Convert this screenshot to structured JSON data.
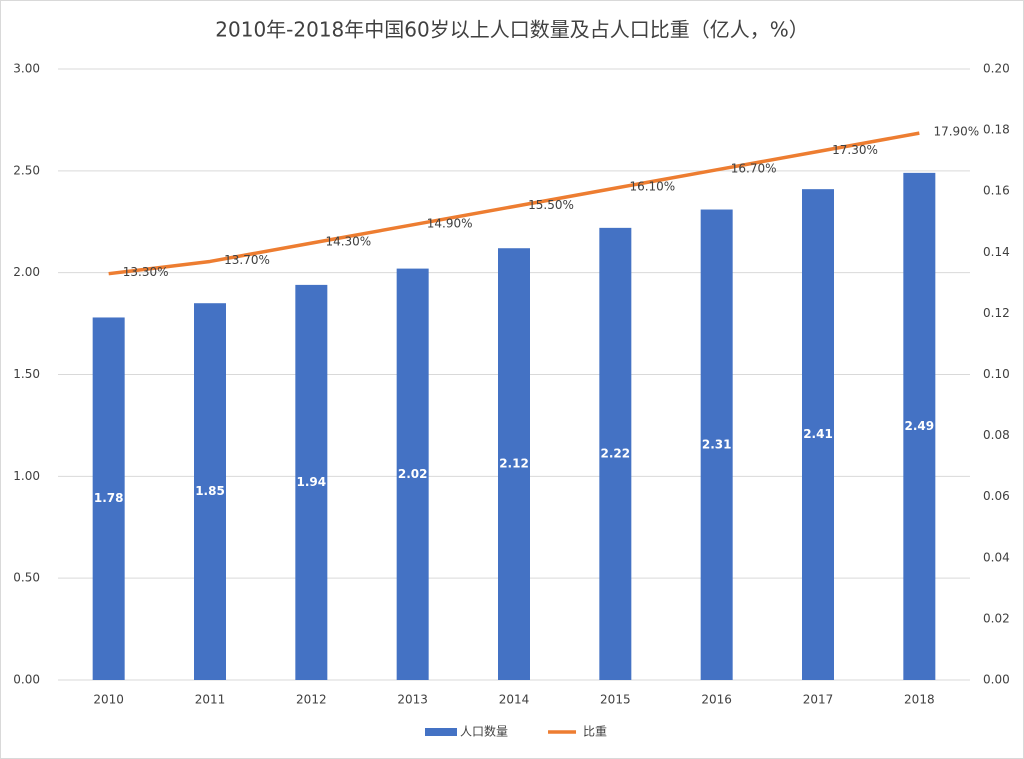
{
  "chart_data": {
    "type": "bar",
    "title": "2010年-2018年中国60岁以上人口数量及占人口比重（亿人，%）",
    "categories": [
      "2010",
      "2011",
      "2012",
      "2013",
      "2014",
      "2015",
      "2016",
      "2017",
      "2018"
    ],
    "series": [
      {
        "name": "人口数量",
        "type": "bar",
        "color": "#4472c4",
        "values": [
          1.78,
          1.85,
          1.94,
          2.02,
          2.12,
          2.22,
          2.31,
          2.41,
          2.49
        ]
      },
      {
        "name": "比重",
        "type": "line",
        "axis": "y2",
        "color": "#ed7d31",
        "values": [
          0.133,
          0.137,
          0.143,
          0.149,
          0.155,
          0.161,
          0.167,
          0.173,
          0.179
        ],
        "value_labels": [
          "13.30%",
          "13.70%",
          "14.30%",
          "14.90%",
          "15.50%",
          "16.10%",
          "16.70%",
          "17.30%",
          "17.90%"
        ]
      }
    ],
    "ylim": [
      0,
      3
    ],
    "yticks": [
      {
        "value": 0,
        "label": "0.00"
      },
      {
        "value": 0.5,
        "label": "0.50"
      },
      {
        "value": 1,
        "label": "1.00"
      },
      {
        "value": 1.5,
        "label": "1.50"
      },
      {
        "value": 2,
        "label": "2.00"
      },
      {
        "value": 2.5,
        "label": "2.50"
      },
      {
        "value": 3,
        "label": "3.00"
      }
    ],
    "y2lim": [
      0,
      0.2
    ],
    "y2ticks": [
      {
        "value": 0,
        "label": "0.00"
      },
      {
        "value": 0.02,
        "label": "0.02"
      },
      {
        "value": 0.04,
        "label": "0.04"
      },
      {
        "value": 0.06,
        "label": "0.06"
      },
      {
        "value": 0.08,
        "label": "0.08"
      },
      {
        "value": 0.1,
        "label": "0.10"
      },
      {
        "value": 0.12,
        "label": "0.12"
      },
      {
        "value": 0.14,
        "label": "0.14"
      },
      {
        "value": 0.16,
        "label": "0.16"
      },
      {
        "value": 0.18,
        "label": "0.18"
      },
      {
        "value": 0.2,
        "label": "0.20"
      }
    ],
    "grid": true,
    "legend": "bottom"
  }
}
